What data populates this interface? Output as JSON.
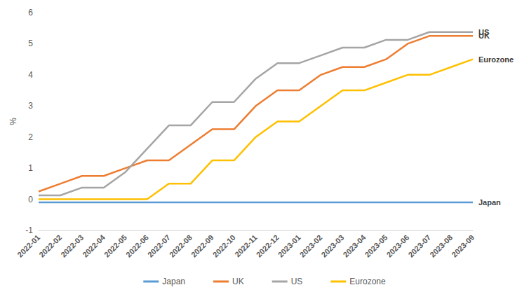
{
  "chart_data": {
    "type": "line",
    "y_label": "%",
    "categories": [
      "2022-01",
      "2022-02",
      "2022-03",
      "2022-04",
      "2022-05",
      "2022-06",
      "2022-07",
      "2022-08",
      "2022-09",
      "2022-10",
      "2022-11",
      "2022-12",
      "2023-01",
      "2023-02",
      "2023-03",
      "2023-04",
      "2023-05",
      "2023-06",
      "2023-07",
      "2023-08",
      "2023-09"
    ],
    "series": [
      {
        "name": "Japan",
        "color": "#5b9bd5",
        "values": [
          -0.1,
          -0.1,
          -0.1,
          -0.1,
          -0.1,
          -0.1,
          -0.1,
          -0.1,
          -0.1,
          -0.1,
          -0.1,
          -0.1,
          -0.1,
          -0.1,
          -0.1,
          -0.1,
          -0.1,
          -0.1,
          -0.1,
          -0.1,
          -0.1
        ]
      },
      {
        "name": "UK",
        "color": "#ed7d31",
        "values": [
          0.25,
          0.5,
          0.75,
          0.75,
          1.0,
          1.25,
          1.25,
          1.75,
          2.25,
          2.25,
          3.0,
          3.5,
          3.5,
          4.0,
          4.25,
          4.25,
          4.5,
          5.0,
          5.25,
          5.25,
          5.25
        ]
      },
      {
        "name": "US",
        "color": "#a5a5a5",
        "values": [
          0.125,
          0.125,
          0.375,
          0.375,
          0.875,
          1.625,
          2.375,
          2.375,
          3.125,
          3.125,
          3.875,
          4.375,
          4.375,
          4.625,
          4.875,
          4.875,
          5.125,
          5.125,
          5.375,
          5.375,
          5.375
        ]
      },
      {
        "name": "Eurozone",
        "color": "#ffc000",
        "values": [
          0,
          0,
          0,
          0,
          0,
          0,
          0.5,
          0.5,
          1.25,
          1.25,
          2.0,
          2.5,
          2.5,
          3.0,
          3.5,
          3.5,
          3.75,
          4.0,
          4.0,
          4.25,
          4.5
        ]
      }
    ],
    "ylim": [
      -1,
      6
    ],
    "yticks": [
      -1,
      0,
      1,
      2,
      3,
      4,
      5,
      6
    ],
    "grid": false,
    "legend": "bottom"
  }
}
